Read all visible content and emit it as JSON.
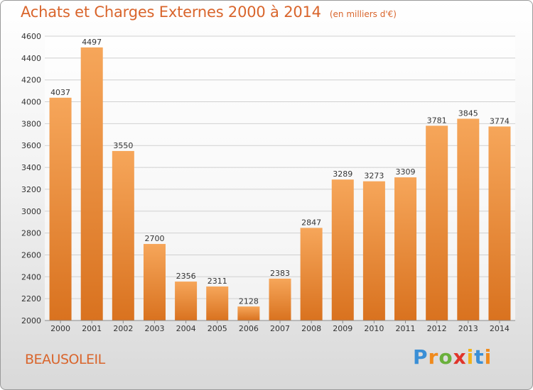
{
  "header": {
    "title": "Achats et Charges Externes 2000 à 2014",
    "subtitle": "(en milliers d'€)"
  },
  "footer": {
    "place": "BEAUSOLEIL",
    "brand": "Proxiti"
  },
  "colors": {
    "accent": "#d9652c",
    "bar_top": "#f6a65a",
    "bar_bottom": "#d9721f",
    "gridline": "#d0d0d0",
    "logo_letters": [
      "#3a8fd6",
      "#f08a1c",
      "#6ab03c",
      "#e0342a",
      "#f2b21a",
      "#3a8fd6",
      "#f08a1c"
    ]
  },
  "chart_data": {
    "type": "bar",
    "title": "Achats et Charges Externes 2000 à 2014",
    "subtitle": "(en milliers d'€)",
    "categories": [
      "2000",
      "2001",
      "2002",
      "2003",
      "2004",
      "2005",
      "2006",
      "2007",
      "2008",
      "2009",
      "2010",
      "2011",
      "2012",
      "2013",
      "2014"
    ],
    "values": [
      4037,
      4497,
      3550,
      2700,
      2356,
      2311,
      2128,
      2383,
      2847,
      3289,
      3273,
      3309,
      3781,
      3845,
      3774
    ],
    "ylim": [
      2000,
      4600
    ],
    "yticks": [
      2000,
      2200,
      2400,
      2600,
      2800,
      3000,
      3200,
      3400,
      3600,
      3800,
      4000,
      4200,
      4400,
      4600
    ],
    "grid": true,
    "data_labels": true
  }
}
